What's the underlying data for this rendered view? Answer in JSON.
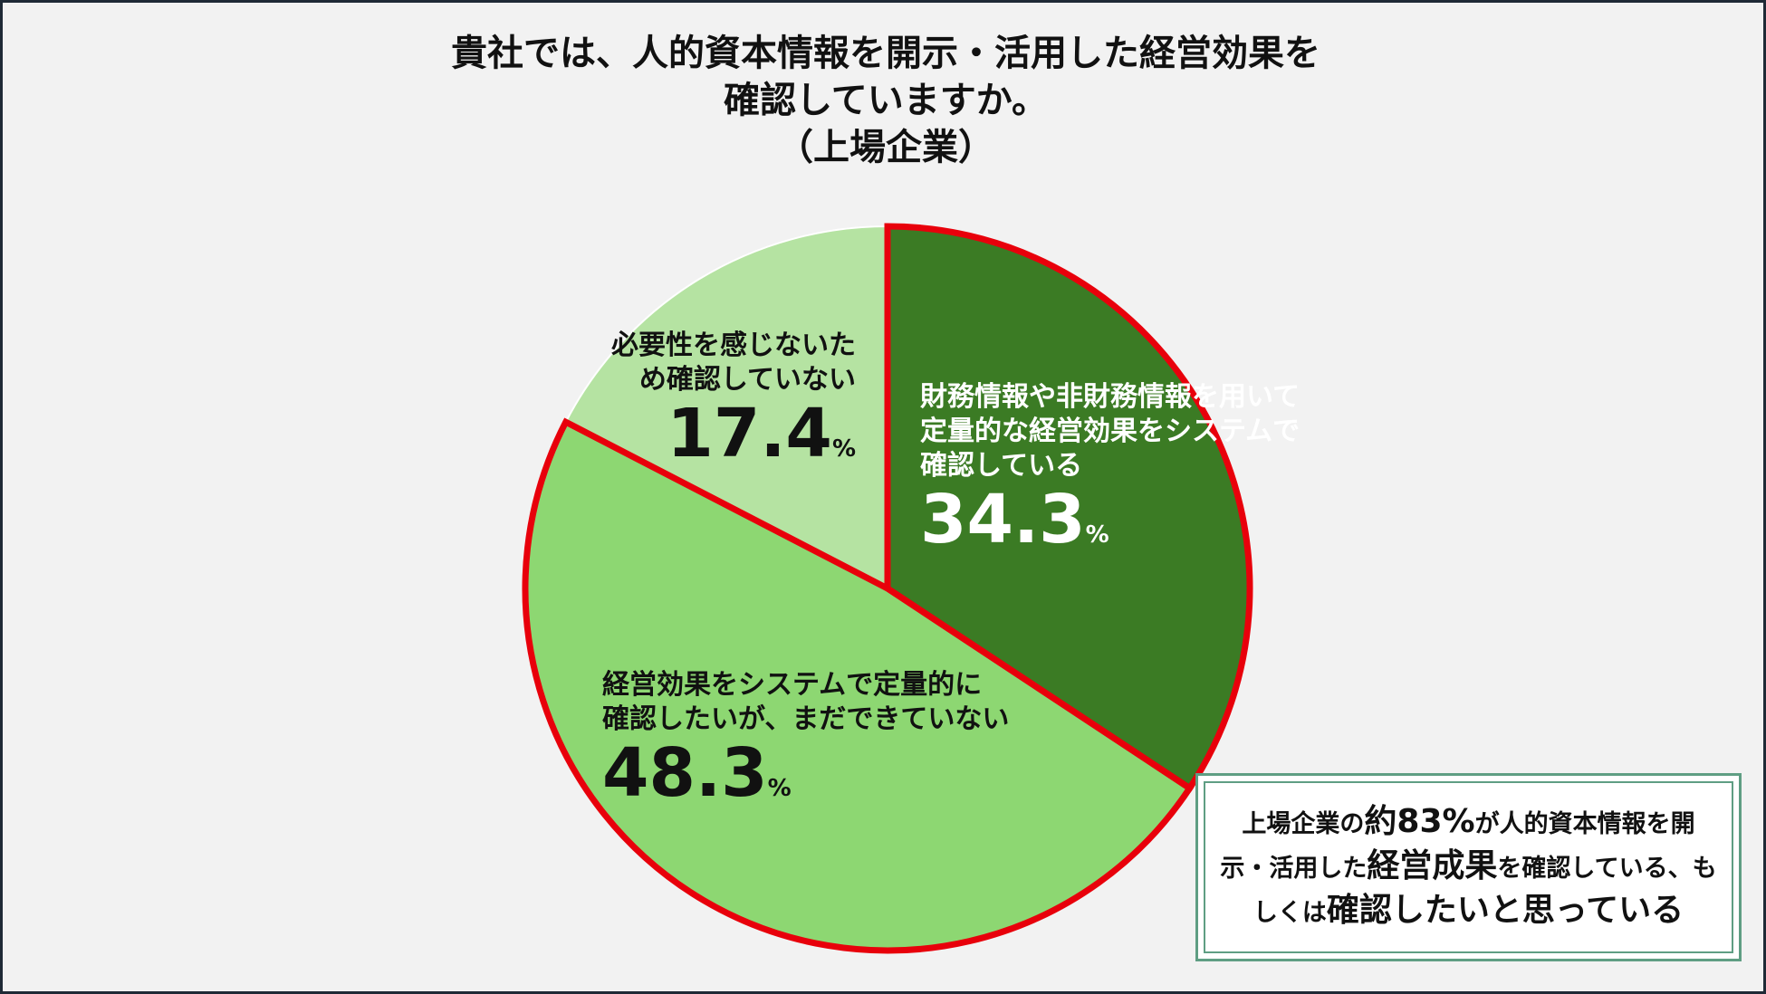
{
  "title_lines": [
    "貴社では、人的資本情報を開示・活用した経営効果を",
    "確認していますか。",
    "（上場企業）"
  ],
  "chart_data": {
    "type": "pie",
    "title": "貴社では、人的資本情報を開示・活用した経営効果を確認していますか。（上場企業）",
    "start_angle_deg": 0,
    "direction": "clockwise",
    "slices": [
      {
        "label": "財務情報や非財務情報を用いて定量的な経営効果をシステムで確認している",
        "value": 34.3,
        "color": "#3b7b24",
        "highlighted": true
      },
      {
        "label": "経営効果をシステムで定量的に確認したいが、まだできていない",
        "value": 48.3,
        "color": "#8dd772",
        "highlighted": true
      },
      {
        "label": "必要性を感じないため確認していない",
        "value": 17.4,
        "color": "#b5e3a2",
        "highlighted": false
      }
    ],
    "highlight_color": "#e8000b"
  },
  "labels": {
    "dark": {
      "lines": [
        "財務情報や非財務情報を用いて",
        "定量的な経営効果をシステムで",
        "確認している"
      ],
      "value": "34.3",
      "unit": "%"
    },
    "mid": {
      "lines": [
        "経営効果をシステムで定量的に",
        "確認したいが、まだできていない"
      ],
      "value": "48.3",
      "unit": "%"
    },
    "light": {
      "lines": [
        "必要性を感じないた",
        "め確認していない"
      ],
      "value": "17.4",
      "unit": "%"
    }
  },
  "callout": {
    "p1": "上場企業の",
    "b1": "約83%",
    "p2": "が人的資本情報を開示・活用した",
    "b2": "経営成果",
    "p3": "を確認している、もしくは",
    "b3": "確認したいと思っている"
  }
}
